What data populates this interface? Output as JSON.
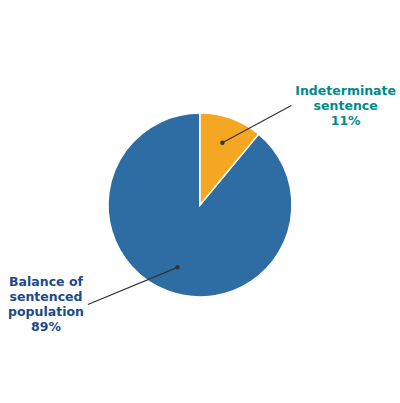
{
  "chart_data": {
    "type": "pie",
    "values": [
      89,
      11
    ],
    "colors": [
      "#2E6DA4",
      "#F5A623"
    ],
    "annotations": [
      {
        "text": "Balance of\nsentenced\npopulation\n89%",
        "color": "#1a4a8a"
      },
      {
        "text": "Indeterminate\nsentence\n11%",
        "color": "#008B8B"
      }
    ]
  }
}
